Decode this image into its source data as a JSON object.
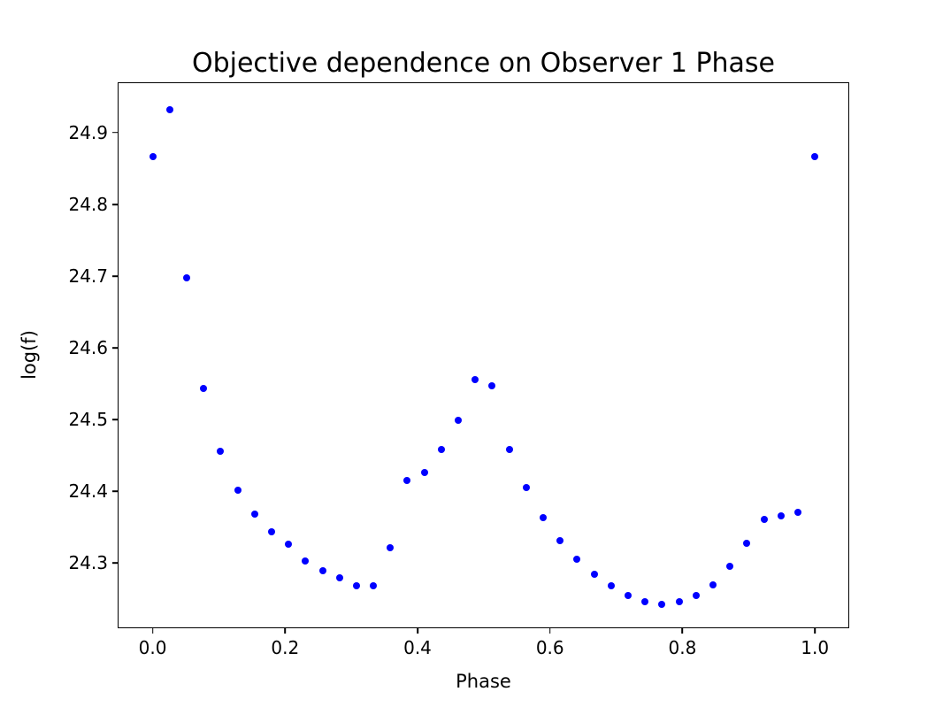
{
  "figure": {
    "title": "Objective dependence on Observer 1 Phase",
    "xlabel": "Phase",
    "ylabel": "log(f)"
  },
  "chart_data": {
    "type": "scatter",
    "title": "Objective dependence on Observer 1 Phase",
    "xlabel": "Phase",
    "ylabel": "log(f)",
    "marker": "circle",
    "marker_color": "#0000ff",
    "marker_diameter_px": 8,
    "grid": false,
    "legend": null,
    "xlim": [
      -0.0515,
      1.0505
    ],
    "ylim": [
      24.2104,
      24.9689
    ],
    "xticks": [
      0.0,
      0.2,
      0.4,
      0.6,
      0.8,
      1.0
    ],
    "xtick_labels": [
      "0.0",
      "0.2",
      "0.4",
      "0.6",
      "0.8",
      "1.0"
    ],
    "yticks": [
      24.3,
      24.4,
      24.5,
      24.6,
      24.7,
      24.8,
      24.9
    ],
    "ytick_labels": [
      "24.3",
      "24.4",
      "24.5",
      "24.6",
      "24.7",
      "24.8",
      "24.9"
    ],
    "x": [
      0.0,
      0.0256,
      0.0513,
      0.0769,
      0.1026,
      0.1282,
      0.1538,
      0.1795,
      0.2051,
      0.2308,
      0.2564,
      0.2821,
      0.3077,
      0.3333,
      0.359,
      0.3846,
      0.4103,
      0.4359,
      0.4615,
      0.4872,
      0.5128,
      0.5385,
      0.5641,
      0.5897,
      0.6154,
      0.641,
      0.6667,
      0.6923,
      0.7179,
      0.7436,
      0.7692,
      0.7949,
      0.8205,
      0.8462,
      0.8718,
      0.8974,
      0.9231,
      0.9487,
      0.9744,
      1.0
    ],
    "y": [
      24.866,
      24.932,
      24.698,
      24.544,
      24.456,
      24.402,
      24.368,
      24.344,
      24.326,
      24.303,
      24.289,
      24.28,
      24.268,
      24.268,
      24.321,
      24.415,
      24.426,
      24.458,
      24.499,
      24.556,
      24.547,
      24.458,
      24.405,
      24.363,
      24.331,
      24.305,
      24.284,
      24.268,
      24.255,
      24.246,
      24.243,
      24.246,
      24.255,
      24.27,
      24.295,
      24.327,
      24.361,
      24.366,
      24.371,
      24.866
    ]
  }
}
